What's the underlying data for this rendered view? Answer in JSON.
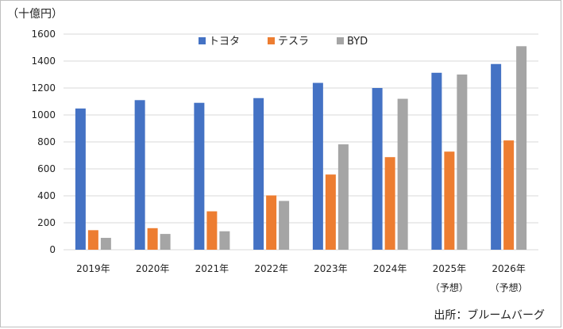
{
  "chart_data": {
    "type": "bar",
    "unit_label": "（十億円）",
    "source": "出所：ブルームバーグ",
    "categories": [
      [
        "2019年"
      ],
      [
        "2020年"
      ],
      [
        "2021年"
      ],
      [
        "2022年"
      ],
      [
        "2023年"
      ],
      [
        "2024年"
      ],
      [
        "2025年",
        "（予想）"
      ],
      [
        "2026年",
        "（予想）"
      ]
    ],
    "series": [
      {
        "name": "トヨタ",
        "color": "#4472C4",
        "values": [
          1048,
          1110,
          1090,
          1125,
          1238,
          1200,
          1313,
          1378
        ]
      },
      {
        "name": "テスラ",
        "color": "#ED7D31",
        "values": [
          145,
          160,
          285,
          403,
          558,
          687,
          728,
          811
        ]
      },
      {
        "name": "BYD",
        "color": "#A5A5A5",
        "values": [
          88,
          117,
          137,
          362,
          782,
          1120,
          1300,
          1510
        ]
      }
    ],
    "ylim": [
      0,
      1600
    ],
    "yticks": [
      0,
      200,
      400,
      600,
      800,
      1000,
      1200,
      1400,
      1600
    ],
    "grid": true,
    "legend": "top-center"
  }
}
